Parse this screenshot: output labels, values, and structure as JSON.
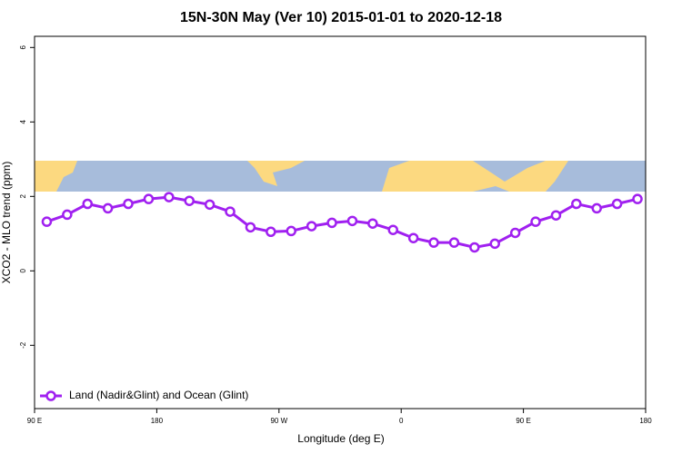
{
  "chart_data": {
    "type": "line",
    "title": "15N-30N May (Ver 10)   2015-01-01 to 2020-12-18",
    "xlabel": "Longitude (deg E)",
    "ylabel": "XCO2 - MLO trend (ppm)",
    "x": [
      99,
      114,
      129,
      144,
      159,
      174,
      189,
      204,
      219,
      234,
      249,
      264,
      279,
      294,
      309,
      324,
      339,
      354,
      369,
      384,
      399,
      414,
      429,
      444,
      459,
      474,
      489,
      504,
      519,
      534
    ],
    "series": [
      {
        "name": "Land (Nadir&Glint) and Ocean (Glint)",
        "color": "#a020f0",
        "values": [
          1.32,
          1.51,
          1.8,
          1.68,
          1.8,
          1.93,
          1.98,
          1.88,
          1.78,
          1.59,
          1.17,
          1.05,
          1.07,
          1.2,
          1.29,
          1.34,
          1.27,
          1.1,
          0.88,
          0.76,
          0.76,
          0.63,
          0.73,
          1.02,
          1.32,
          1.49,
          1.8,
          1.68,
          1.8,
          1.93
        ]
      }
    ],
    "xlim": [
      90,
      540
    ],
    "xticks": [
      {
        "value": 90,
        "label": "90 E"
      },
      180,
      {
        "value": 270,
        "label": "90 W"
      },
      {
        "value": 360,
        "label": "0"
      },
      {
        "value": 450,
        "label": "90 E"
      },
      {
        "value": 540,
        "label": "180"
      }
    ],
    "ylim": [
      -3.7,
      6.3
    ],
    "yticks": [
      -2,
      0,
      2,
      4,
      6
    ],
    "legend": "bottom-left"
  }
}
